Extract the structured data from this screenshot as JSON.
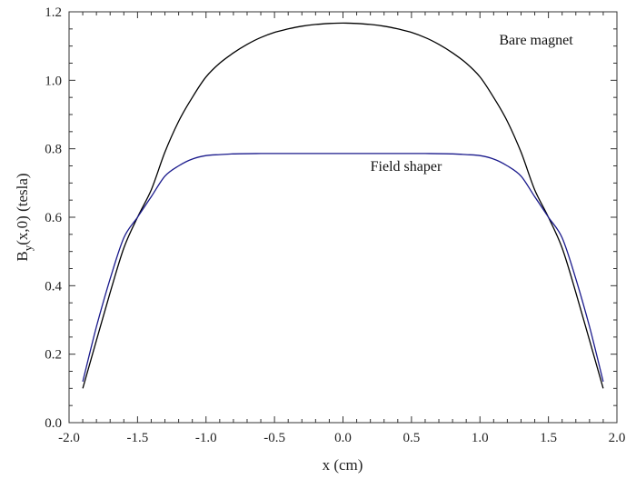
{
  "chart_data": {
    "type": "line",
    "title": "",
    "xlabel": "x (cm)",
    "ylabel": "B",
    "ylabel_sub": "y",
    "ylabel_rest": "(x,0)  (tesla)",
    "xlim": [
      -2.0,
      2.0
    ],
    "ylim": [
      0.0,
      1.2
    ],
    "xticks": [
      -2.0,
      -1.5,
      -1.0,
      -0.5,
      0.0,
      0.5,
      1.0,
      1.5,
      2.0
    ],
    "xtick_labels": [
      "-2.0",
      "-1.5",
      "-1.0",
      "-0.5",
      "0.0",
      "0.5",
      "1.0",
      "1.5",
      "2.0"
    ],
    "yticks": [
      0.0,
      0.2,
      0.4,
      0.6,
      0.8,
      1.0,
      1.2
    ],
    "ytick_labels": [
      "0.0",
      "0.2",
      "0.4",
      "0.6",
      "0.8",
      "1.0",
      "1.2"
    ],
    "grid": false,
    "series": [
      {
        "name": "Bare magnet",
        "color": "#000000",
        "x": [
          -1.9,
          -1.8,
          -1.7,
          -1.6,
          -1.5,
          -1.4,
          -1.3,
          -1.2,
          -1.1,
          -1.0,
          -0.9,
          -0.8,
          -0.7,
          -0.6,
          -0.5,
          -0.4,
          -0.3,
          -0.2,
          -0.1,
          0.0,
          0.1,
          0.2,
          0.3,
          0.4,
          0.5,
          0.6,
          0.7,
          0.8,
          0.9,
          1.0,
          1.1,
          1.2,
          1.3,
          1.4,
          1.5,
          1.6,
          1.7,
          1.8,
          1.9
        ],
        "y": [
          0.1,
          0.24,
          0.38,
          0.51,
          0.6,
          0.68,
          0.79,
          0.88,
          0.95,
          1.01,
          1.05,
          1.08,
          1.105,
          1.125,
          1.14,
          1.15,
          1.158,
          1.163,
          1.166,
          1.167,
          1.166,
          1.163,
          1.158,
          1.15,
          1.14,
          1.125,
          1.105,
          1.08,
          1.05,
          1.01,
          0.95,
          0.88,
          0.79,
          0.68,
          0.6,
          0.51,
          0.38,
          0.24,
          0.1
        ]
      },
      {
        "name": "Field shaper",
        "color": "#1a1a8c",
        "x": [
          -1.9,
          -1.8,
          -1.7,
          -1.6,
          -1.5,
          -1.4,
          -1.3,
          -1.2,
          -1.1,
          -1.0,
          -0.9,
          -0.8,
          -0.6,
          -0.4,
          -0.2,
          0.0,
          0.2,
          0.4,
          0.6,
          0.8,
          0.9,
          1.0,
          1.1,
          1.2,
          1.3,
          1.4,
          1.5,
          1.6,
          1.7,
          1.8,
          1.9
        ],
        "y": [
          0.12,
          0.28,
          0.42,
          0.54,
          0.6,
          0.66,
          0.72,
          0.75,
          0.77,
          0.78,
          0.783,
          0.785,
          0.786,
          0.786,
          0.786,
          0.786,
          0.786,
          0.786,
          0.786,
          0.785,
          0.783,
          0.78,
          0.77,
          0.75,
          0.72,
          0.66,
          0.6,
          0.54,
          0.42,
          0.28,
          0.12
        ]
      }
    ],
    "annotations": [
      {
        "text": "Bare magnet",
        "x": 1.14,
        "y": 1.105
      },
      {
        "text": "Field shaper",
        "x": 0.2,
        "y": 0.735
      }
    ]
  }
}
